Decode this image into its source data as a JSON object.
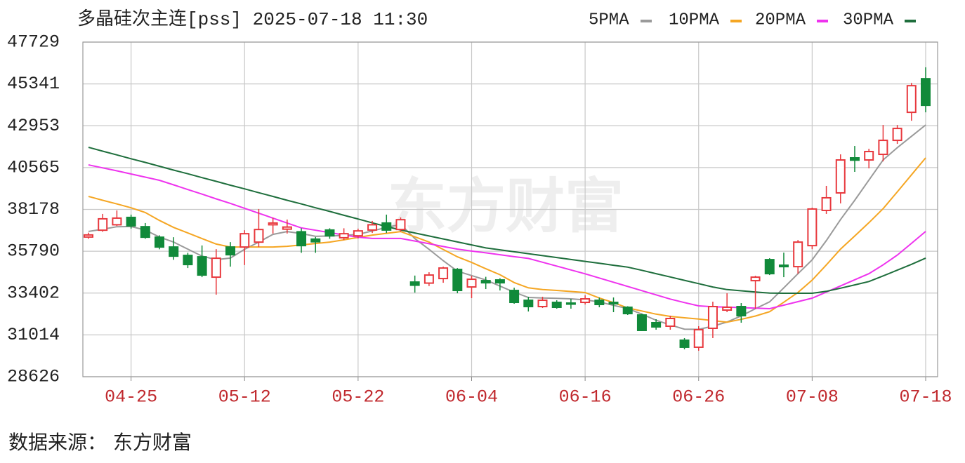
{
  "chart_data": {
    "type": "candlestick",
    "title": "多晶硅次主连[pss] 2025-07-18 11:30",
    "source": "数据来源： 东方财富",
    "watermark": "东方财富",
    "up_color": "#e8383d",
    "down_color": "#118a3a",
    "grid": true,
    "legend": "top-right",
    "ylim": [
      28626,
      47729
    ],
    "yticks": [
      28626,
      31014,
      33402,
      35790,
      38178,
      40565,
      42953,
      45341,
      47729
    ],
    "categories": [
      null,
      null,
      null,
      "04-25",
      null,
      null,
      null,
      null,
      null,
      null,
      null,
      "05-12",
      null,
      null,
      null,
      null,
      null,
      null,
      null,
      "05-22",
      null,
      null,
      null,
      null,
      null,
      null,
      null,
      "06-04",
      null,
      null,
      null,
      null,
      null,
      null,
      null,
      "06-16",
      null,
      null,
      null,
      null,
      null,
      null,
      null,
      "06-26",
      null,
      null,
      null,
      null,
      null,
      null,
      null,
      "07-08",
      null,
      null,
      null,
      null,
      null,
      null,
      null,
      "07-18"
    ],
    "open": [
      36600,
      36990,
      37300,
      37720,
      37190,
      36590,
      36030,
      35550,
      35470,
      34310,
      36030,
      36030,
      36310,
      37300,
      37050,
      36900,
      36480,
      37000,
      36560,
      36670,
      37000,
      37400,
      37030,
      34030,
      33970,
      34230,
      34750,
      33750,
      34110,
      34150,
      33550,
      32990,
      32630,
      32870,
      32830,
      32870,
      32990,
      32870,
      32590,
      32150,
      31710,
      31510,
      30710,
      30310,
      31390,
      32430,
      32630,
      34110,
      35310,
      34990,
      34910,
      36110,
      38120,
      39120,
      41120,
      41000,
      41320,
      42120,
      43720,
      45640
    ],
    "high": [
      36850,
      37920,
      38120,
      37880,
      37400,
      36700,
      36590,
      35700,
      36120,
      35910,
      36310,
      36990,
      38200,
      37700,
      37600,
      37100,
      36600,
      37100,
      37100,
      37080,
      37520,
      37880,
      37720,
      34400,
      34590,
      34910,
      34830,
      34390,
      34330,
      34250,
      33710,
      33190,
      33190,
      32990,
      33070,
      33270,
      33150,
      33150,
      32650,
      32230,
      31910,
      32110,
      30830,
      31510,
      32910,
      33390,
      32830,
      34390,
      35390,
      35710,
      36430,
      38280,
      39520,
      41320,
      41800,
      41640,
      43000,
      43000,
      45400,
      46290
    ],
    "low": [
      36500,
      36900,
      37230,
      37080,
      36500,
      35900,
      35300,
      34830,
      34310,
      33310,
      34910,
      35000,
      36030,
      36800,
      36800,
      35700,
      35700,
      36500,
      36430,
      36520,
      36830,
      36830,
      36910,
      33430,
      33800,
      33990,
      33390,
      33110,
      33630,
      33550,
      32790,
      32350,
      32550,
      32510,
      32510,
      32750,
      32590,
      32310,
      32150,
      31230,
      31310,
      31310,
      30190,
      30110,
      30830,
      32310,
      31710,
      32510,
      34430,
      34310,
      34510,
      35910,
      37920,
      38520,
      40320,
      40520,
      40920,
      41920,
      43240,
      43720
    ],
    "close": [
      36720,
      37640,
      37680,
      37240,
      36590,
      36030,
      35510,
      35030,
      34430,
      35390,
      35590,
      36790,
      37030,
      37400,
      37170,
      36110,
      36330,
      36670,
      36790,
      36950,
      37300,
      37000,
      37590,
      33850,
      34430,
      34830,
      33550,
      34190,
      33990,
      33990,
      32870,
      32630,
      32990,
      32590,
      32790,
      33070,
      32750,
      32790,
      32230,
      31270,
      31470,
      31950,
      30310,
      31310,
      32630,
      32590,
      32110,
      34310,
      34510,
      34910,
      36310,
      38200,
      38840,
      41000,
      40990,
      41480,
      42120,
      42800,
      45240,
      44120
    ],
    "lines": [
      {
        "name": "5PMA",
        "color": "#9a9a9a",
        "values": [
          36920,
          37050,
          37190,
          37200,
          37000,
          36600,
          36310,
          35910,
          35510,
          35310,
          35400,
          35900,
          36310,
          36750,
          36910,
          36800,
          36640,
          36660,
          36690,
          36750,
          36950,
          37150,
          37320,
          36510,
          35900,
          35250,
          34650,
          34400,
          34150,
          33800,
          33450,
          33150,
          33120,
          33100,
          33070,
          33010,
          32900,
          32700,
          32520,
          32200,
          31850,
          31580,
          31340,
          31330,
          31510,
          31750,
          32100,
          32510,
          32900,
          33700,
          34510,
          35300,
          36400,
          37600,
          38700,
          39850,
          41000,
          41700,
          42350,
          43000
        ]
      },
      {
        "name": "10PMA",
        "color": "#f5a623",
        "values": [
          38920,
          38700,
          38490,
          38270,
          38000,
          37550,
          37150,
          36830,
          36510,
          36200,
          36030,
          36030,
          36030,
          36030,
          36070,
          36150,
          36230,
          36310,
          36440,
          36580,
          36710,
          36810,
          36910,
          36610,
          36310,
          35890,
          35470,
          35150,
          34790,
          34450,
          34000,
          33700,
          33600,
          33550,
          33490,
          33430,
          33120,
          32860,
          32550,
          32380,
          32200,
          32070,
          31990,
          31920,
          31830,
          31740,
          31900,
          32090,
          32340,
          32880,
          33440,
          34140,
          35010,
          35910,
          36660,
          37420,
          38220,
          39180,
          40150,
          41120
        ]
      },
      {
        "name": "20PMA",
        "color": "#ee33ee",
        "values": [
          40720,
          40550,
          40380,
          40200,
          40020,
          39840,
          39580,
          39310,
          39050,
          38780,
          38520,
          38240,
          37960,
          37680,
          37400,
          37120,
          36990,
          36850,
          36720,
          36590,
          36520,
          36520,
          36520,
          36370,
          36220,
          36060,
          35910,
          35800,
          35700,
          35590,
          35480,
          35380,
          35160,
          34940,
          34720,
          34500,
          34260,
          34020,
          33780,
          33540,
          33300,
          33060,
          32860,
          32670,
          32620,
          32600,
          32570,
          32540,
          32510,
          32710,
          32910,
          33110,
          33460,
          33810,
          34160,
          34510,
          35010,
          35570,
          36240,
          36920
        ]
      },
      {
        "name": "30PMA",
        "color": "#1e6e3c",
        "values": [
          41720,
          41500,
          41290,
          41070,
          40860,
          40640,
          40420,
          40210,
          39990,
          39780,
          39560,
          39350,
          39130,
          38920,
          38700,
          38490,
          38270,
          38060,
          37840,
          37630,
          37410,
          37200,
          37000,
          36830,
          36660,
          36490,
          36320,
          36150,
          35980,
          35870,
          35760,
          35650,
          35540,
          35430,
          35320,
          35210,
          35100,
          34990,
          34880,
          34700,
          34510,
          34320,
          34130,
          33940,
          33750,
          33600,
          33530,
          33460,
          33400,
          33390,
          33390,
          33390,
          33500,
          33680,
          33870,
          34060,
          34380,
          34710,
          35040,
          35400
        ]
      }
    ]
  }
}
